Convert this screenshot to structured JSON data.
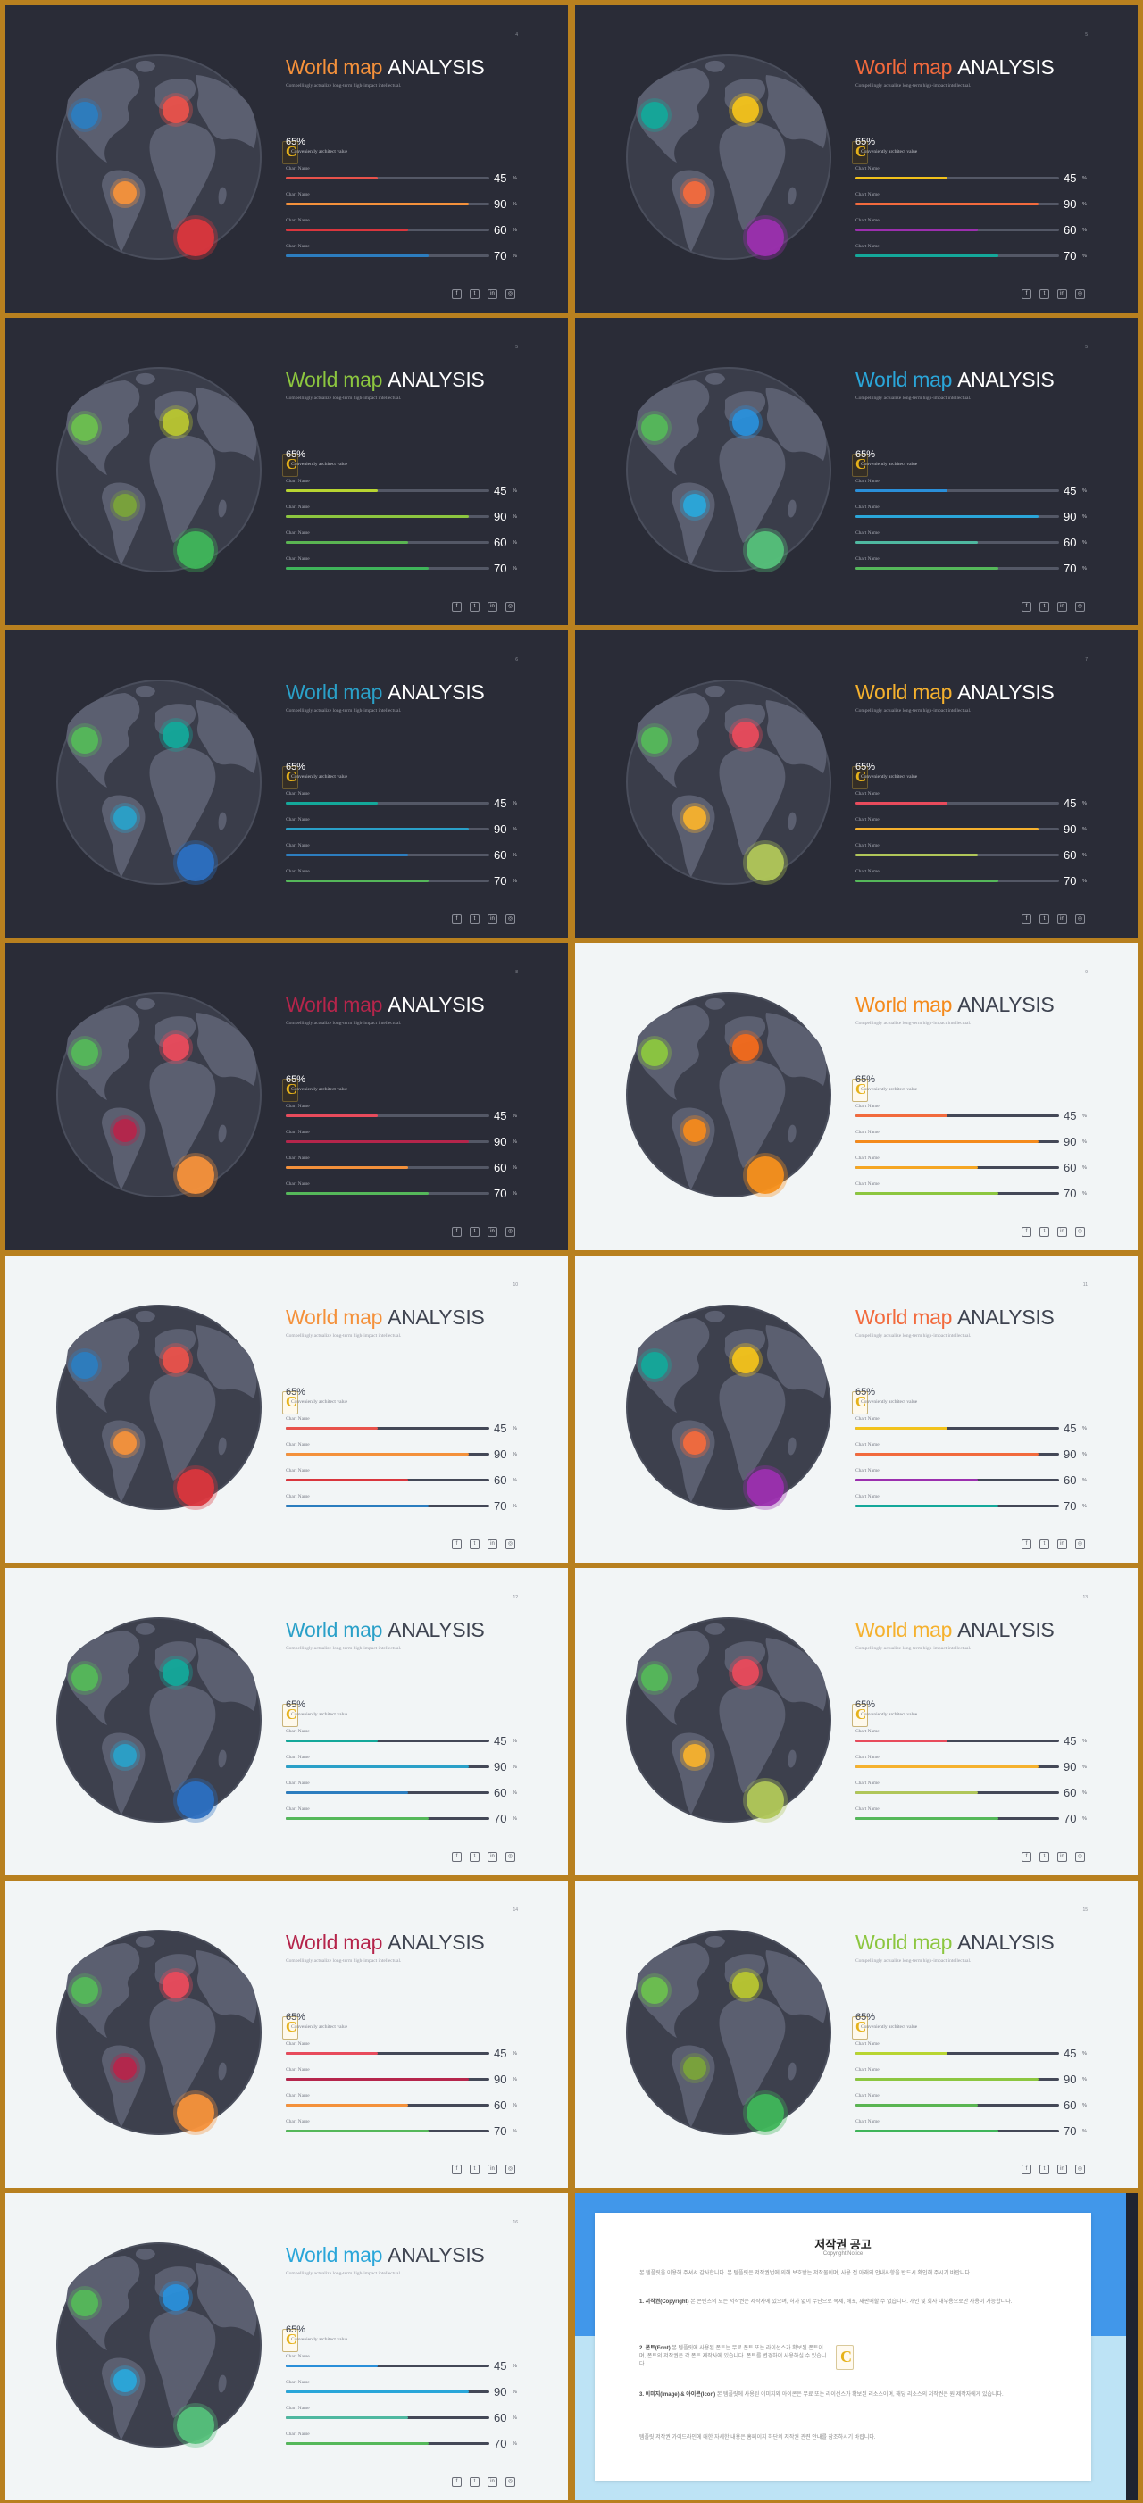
{
  "slides": [
    {
      "theme": "dark",
      "page": "4",
      "title_accent": "World map",
      "title_main": "ANALYSIS",
      "accent": "#f4913b",
      "subtitle": "Compellingly actualize long-term high-impact intellectual.",
      "stat_value": "65%",
      "stat_label": "Conveniently architect value",
      "bars": [
        {
          "label": "Chart Name",
          "value": 45,
          "color": "#e8524b"
        },
        {
          "label": "Chart Name",
          "value": 90,
          "color": "#f4913b"
        },
        {
          "label": "Chart Name",
          "value": 60,
          "color": "#d9363d"
        },
        {
          "label": "Chart Name",
          "value": 70,
          "color": "#2c7dbf"
        }
      ],
      "dots": [
        "#2c7dbf",
        "#e8524b",
        "#f4913b",
        "#d9363d"
      ]
    },
    {
      "theme": "dark",
      "page": "5",
      "title_accent": "World map",
      "title_main": "ANALYSIS",
      "accent": "#f26a3d",
      "subtitle": "Compellingly actualize long-term high-impact intellectual.",
      "stat_value": "65%",
      "stat_label": "Conveniently architect value",
      "bars": [
        {
          "label": "Chart Name",
          "value": 45,
          "color": "#f2c21b"
        },
        {
          "label": "Chart Name",
          "value": 90,
          "color": "#f26a3d"
        },
        {
          "label": "Chart Name",
          "value": 60,
          "color": "#9b2fae"
        },
        {
          "label": "Chart Name",
          "value": 70,
          "color": "#14a89a"
        }
      ],
      "dots": [
        "#14a89a",
        "#f2c21b",
        "#f26a3d",
        "#9b2fae"
      ]
    },
    {
      "theme": "dark",
      "page": "5",
      "title_accent": "World map",
      "title_main": "ANALYSIS",
      "accent": "#8cc63f",
      "subtitle": "Compellingly actualize long-term high-impact intellectual.",
      "stat_value": "65%",
      "stat_label": "Conveniently architect value",
      "bars": [
        {
          "label": "Chart Name",
          "value": 45,
          "color": "#b8d531"
        },
        {
          "label": "Chart Name",
          "value": 90,
          "color": "#8cc63f"
        },
        {
          "label": "Chart Name",
          "value": 60,
          "color": "#5ab552"
        },
        {
          "label": "Chart Name",
          "value": 70,
          "color": "#3fb55a"
        }
      ],
      "dots": [
        "#6cbf4f",
        "#b8c531",
        "#7aa33a",
        "#3fb55a"
      ]
    },
    {
      "theme": "dark",
      "page": "5",
      "title_accent": "World map",
      "title_main": "ANALYSIS",
      "accent": "#2aa6d9",
      "subtitle": "Compellingly actualize long-term high-impact intellectual.",
      "stat_value": "65%",
      "stat_label": "Conveniently architect value",
      "bars": [
        {
          "label": "Chart Name",
          "value": 45,
          "color": "#2a8fd9"
        },
        {
          "label": "Chart Name",
          "value": 90,
          "color": "#2aa6d9"
        },
        {
          "label": "Chart Name",
          "value": 60,
          "color": "#4fb8a0"
        },
        {
          "label": "Chart Name",
          "value": 70,
          "color": "#55b85a"
        }
      ],
      "dots": [
        "#55b85a",
        "#2a8fd9",
        "#2aa6d9",
        "#55c07a"
      ]
    },
    {
      "theme": "dark",
      "page": "6",
      "title_accent": "World map",
      "title_main": "ANALYSIS",
      "accent": "#2aa0c8",
      "subtitle": "Compellingly actualize long-term high-impact intellectual.",
      "stat_value": "65%",
      "stat_label": "Conveniently architect value",
      "bars": [
        {
          "label": "Chart Name",
          "value": 45,
          "color": "#14a89a"
        },
        {
          "label": "Chart Name",
          "value": 90,
          "color": "#2aa0c8"
        },
        {
          "label": "Chart Name",
          "value": 60,
          "color": "#2c7dbf"
        },
        {
          "label": "Chart Name",
          "value": 70,
          "color": "#55b85a"
        }
      ],
      "dots": [
        "#55b85a",
        "#14a89a",
        "#2aa0c8",
        "#2c6fc0"
      ]
    },
    {
      "theme": "dark",
      "page": "7",
      "title_accent": "World map",
      "title_main": "ANALYSIS",
      "accent": "#f5b12e",
      "subtitle": "Compellingly actualize long-term high-impact intellectual.",
      "stat_value": "65%",
      "stat_label": "Conveniently architect value",
      "bars": [
        {
          "label": "Chart Name",
          "value": 45,
          "color": "#e84b5c"
        },
        {
          "label": "Chart Name",
          "value": 90,
          "color": "#f5b12e"
        },
        {
          "label": "Chart Name",
          "value": 60,
          "color": "#b0c659"
        },
        {
          "label": "Chart Name",
          "value": 70,
          "color": "#55b85a"
        }
      ],
      "dots": [
        "#55b85a",
        "#e84b5c",
        "#f5b12e",
        "#b0c659"
      ]
    },
    {
      "theme": "dark",
      "page": "8",
      "title_accent": "World map",
      "title_main": "ANALYSIS",
      "accent": "#b5254b",
      "subtitle": "Compellingly actualize long-term high-impact intellectual.",
      "stat_value": "65%",
      "stat_label": "Conveniently architect value",
      "bars": [
        {
          "label": "Chart Name",
          "value": 45,
          "color": "#e84b5c"
        },
        {
          "label": "Chart Name",
          "value": 90,
          "color": "#b5254b"
        },
        {
          "label": "Chart Name",
          "value": 60,
          "color": "#f4913b"
        },
        {
          "label": "Chart Name",
          "value": 70,
          "color": "#55b85a"
        }
      ],
      "dots": [
        "#55b85a",
        "#e84b5c",
        "#b5254b",
        "#f4913b"
      ]
    },
    {
      "theme": "light",
      "page": "9",
      "title_accent": "World map",
      "title_main": "ANALYSIS",
      "accent": "#f48a1c",
      "subtitle": "Compellingly actualize long-term high-impact intellectual.",
      "stat_value": "65%",
      "stat_label": "Conveniently architect value",
      "bars": [
        {
          "label": "Chart Name",
          "value": 45,
          "color": "#f26a3d"
        },
        {
          "label": "Chart Name",
          "value": 90,
          "color": "#f48a1c"
        },
        {
          "label": "Chart Name",
          "value": 60,
          "color": "#f5a623"
        },
        {
          "label": "Chart Name",
          "value": 70,
          "color": "#8cc63f"
        }
      ],
      "dots": [
        "#8cc63f",
        "#f26a1c",
        "#f48a1c",
        "#f5901c"
      ]
    },
    {
      "theme": "light",
      "page": "10",
      "title_accent": "World map",
      "title_main": "ANALYSIS",
      "accent": "#f4913b",
      "subtitle": "Compellingly actualize long-term high-impact intellectual.",
      "stat_value": "65%",
      "stat_label": "Conveniently architect value",
      "bars": [
        {
          "label": "Chart Name",
          "value": 45,
          "color": "#e8524b"
        },
        {
          "label": "Chart Name",
          "value": 90,
          "color": "#f4913b"
        },
        {
          "label": "Chart Name",
          "value": 60,
          "color": "#d9363d"
        },
        {
          "label": "Chart Name",
          "value": 70,
          "color": "#2c7dbf"
        }
      ],
      "dots": [
        "#2c7dbf",
        "#e8524b",
        "#f4913b",
        "#d9363d"
      ]
    },
    {
      "theme": "light",
      "page": "11",
      "title_accent": "World map",
      "title_main": "ANALYSIS",
      "accent": "#f26a3d",
      "subtitle": "Compellingly actualize long-term high-impact intellectual.",
      "stat_value": "65%",
      "stat_label": "Conveniently architect value",
      "bars": [
        {
          "label": "Chart Name",
          "value": 45,
          "color": "#f2c21b"
        },
        {
          "label": "Chart Name",
          "value": 90,
          "color": "#f26a3d"
        },
        {
          "label": "Chart Name",
          "value": 60,
          "color": "#9b2fae"
        },
        {
          "label": "Chart Name",
          "value": 70,
          "color": "#14a89a"
        }
      ],
      "dots": [
        "#14a89a",
        "#f2c21b",
        "#f26a3d",
        "#9b2fae"
      ]
    },
    {
      "theme": "light",
      "page": "12",
      "title_accent": "World map",
      "title_main": "ANALYSIS",
      "accent": "#2aa0c8",
      "subtitle": "Compellingly actualize long-term high-impact intellectual.",
      "stat_value": "65%",
      "stat_label": "Conveniently architect value",
      "bars": [
        {
          "label": "Chart Name",
          "value": 45,
          "color": "#14a89a"
        },
        {
          "label": "Chart Name",
          "value": 90,
          "color": "#2aa0c8"
        },
        {
          "label": "Chart Name",
          "value": 60,
          "color": "#2c7dbf"
        },
        {
          "label": "Chart Name",
          "value": 70,
          "color": "#55b85a"
        }
      ],
      "dots": [
        "#55b85a",
        "#14a89a",
        "#2aa0c8",
        "#2c6fc0"
      ]
    },
    {
      "theme": "light",
      "page": "13",
      "title_accent": "World map",
      "title_main": "ANALYSIS",
      "accent": "#f5b12e",
      "subtitle": "Compellingly actualize long-term high-impact intellectual.",
      "stat_value": "65%",
      "stat_label": "Conveniently architect value",
      "bars": [
        {
          "label": "Chart Name",
          "value": 45,
          "color": "#e84b5c"
        },
        {
          "label": "Chart Name",
          "value": 90,
          "color": "#f5b12e"
        },
        {
          "label": "Chart Name",
          "value": 60,
          "color": "#b0c659"
        },
        {
          "label": "Chart Name",
          "value": 70,
          "color": "#55b85a"
        }
      ],
      "dots": [
        "#55b85a",
        "#e84b5c",
        "#f5b12e",
        "#b0c659"
      ]
    },
    {
      "theme": "light",
      "page": "14",
      "title_accent": "World map",
      "title_main": "ANALYSIS",
      "accent": "#b5254b",
      "subtitle": "Compellingly actualize long-term high-impact intellectual.",
      "stat_value": "65%",
      "stat_label": "Conveniently architect value",
      "bars": [
        {
          "label": "Chart Name",
          "value": 45,
          "color": "#e84b5c"
        },
        {
          "label": "Chart Name",
          "value": 90,
          "color": "#b5254b"
        },
        {
          "label": "Chart Name",
          "value": 60,
          "color": "#f4913b"
        },
        {
          "label": "Chart Name",
          "value": 70,
          "color": "#55b85a"
        }
      ],
      "dots": [
        "#55b85a",
        "#e84b5c",
        "#b5254b",
        "#f4913b"
      ]
    },
    {
      "theme": "light",
      "page": "15",
      "title_accent": "World map",
      "title_main": "ANALYSIS",
      "accent": "#8cc63f",
      "subtitle": "Compellingly actualize long-term high-impact intellectual.",
      "stat_value": "65%",
      "stat_label": "Conveniently architect value",
      "bars": [
        {
          "label": "Chart Name",
          "value": 45,
          "color": "#b8d531"
        },
        {
          "label": "Chart Name",
          "value": 90,
          "color": "#8cc63f"
        },
        {
          "label": "Chart Name",
          "value": 60,
          "color": "#5ab552"
        },
        {
          "label": "Chart Name",
          "value": 70,
          "color": "#3fb55a"
        }
      ],
      "dots": [
        "#6cbf4f",
        "#b8c531",
        "#7aa33a",
        "#3fb55a"
      ]
    },
    {
      "theme": "light",
      "page": "16",
      "title_accent": "World map",
      "title_main": "ANALYSIS",
      "accent": "#2aa6d9",
      "subtitle": "Compellingly actualize long-term high-impact intellectual.",
      "stat_value": "65%",
      "stat_label": "Conveniently architect value",
      "bars": [
        {
          "label": "Chart Name",
          "value": 45,
          "color": "#2a8fd9"
        },
        {
          "label": "Chart Name",
          "value": 90,
          "color": "#2aa6d9"
        },
        {
          "label": "Chart Name",
          "value": 60,
          "color": "#4fb8a0"
        },
        {
          "label": "Chart Name",
          "value": 70,
          "color": "#55b85a"
        }
      ],
      "dots": [
        "#55b85a",
        "#2a8fd9",
        "#2aa6d9",
        "#55c07a"
      ]
    }
  ],
  "socials": [
    "f",
    "t",
    "in",
    "◎"
  ],
  "percent_sign": "%",
  "brand_mark": "C",
  "notice": {
    "title": "저작권 공고",
    "subtitle": "Copyright Notice",
    "intro": "본 템플릿을 이용해 주셔서 감사합니다. 본 템플릿은 저작권법에 의해 보호받는 저작물이며, 사용 전 아래의 안내사항을 반드시 확인해 주시기 바랍니다.",
    "item1_head": "1. 저작권(Copyright)",
    "item1_body": "본 콘텐츠의 모든 저작권은 제작사에 있으며, 허가 없이 무단으로 복제, 배포, 재판매할 수 없습니다. 개인 및 회사 내부용으로만 사용이 가능합니다.",
    "item2_head": "2. 폰트(Font)",
    "item2_body": "본 템플릿에 사용된 폰트는 무료 폰트 또는 라이선스가 확보된 폰트이며, 폰트의 저작권은 각 폰트 제작사에 있습니다. 폰트를 변경하여 사용하실 수 있습니다.",
    "item3_head": "3. 이미지(Image) & 아이콘(Icon)",
    "item3_body": "본 템플릿에 사용된 이미지와 아이콘은 무료 또는 라이선스가 확보된 리소스이며, 해당 리소스의 저작권은 원 제작자에게 있습니다.",
    "outro": "템플릿 저작권 가이드라인에 대한 자세한 내용은 홈페이지 하단의 저작권 관련 안내를 참조하시기 바랍니다."
  }
}
